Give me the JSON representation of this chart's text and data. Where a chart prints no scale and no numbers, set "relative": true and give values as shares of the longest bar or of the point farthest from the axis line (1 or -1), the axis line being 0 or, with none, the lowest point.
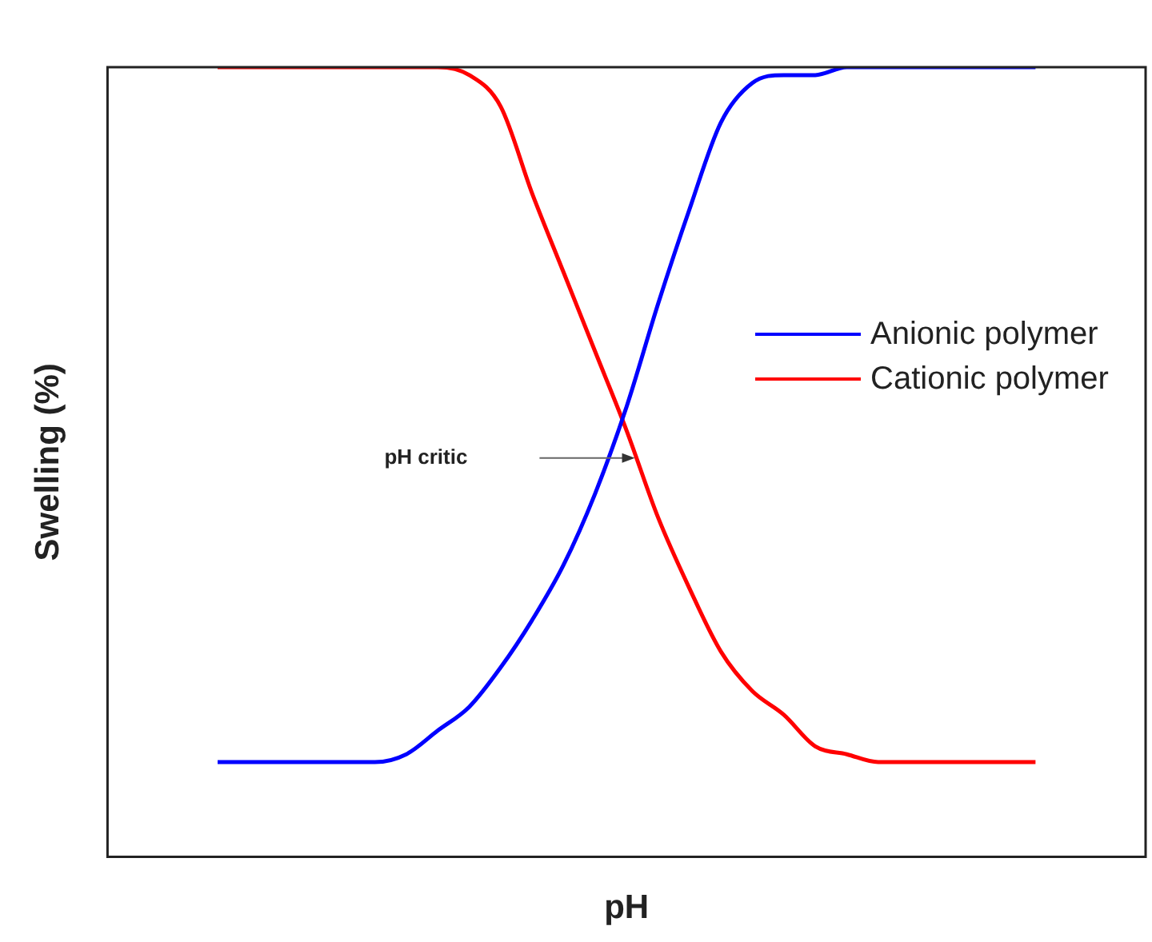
{
  "chart_data": {
    "type": "line",
    "xlabel": "pH",
    "ylabel": "Swelling (%)",
    "relative": true,
    "tick_labels": false,
    "grid": false,
    "legend": "right",
    "marker": "none",
    "line_style": "solid",
    "annotations": [
      "pH critic"
    ],
    "categories": [
      null,
      null,
      null,
      null,
      null,
      null,
      null,
      null,
      null,
      null,
      null,
      null,
      null,
      null,
      null,
      null,
      null,
      null,
      null,
      null,
      null,
      null,
      null,
      null,
      null,
      null,
      null
    ],
    "series": [
      {
        "name": "Anionic polymer",
        "color": "#0000ff",
        "values": [
          0.12,
          0.12,
          0.12,
          0.12,
          0.12,
          0.12,
          0.13,
          0.16,
          0.19,
          0.24,
          0.3,
          0.37,
          0.46,
          0.57,
          0.7,
          0.82,
          0.93,
          0.98,
          0.99,
          0.99,
          1,
          1,
          1,
          1,
          1,
          1,
          1
        ]
      },
      {
        "name": "Cationic polymer",
        "color": "#ff0000",
        "values": [
          1,
          1,
          1,
          1,
          1,
          1,
          1,
          1,
          0.99,
          0.95,
          0.84,
          0.74,
          0.64,
          0.54,
          0.43,
          0.34,
          0.26,
          0.21,
          0.18,
          0.14,
          0.13,
          0.12,
          0.12,
          0.12,
          0.12,
          0.12,
          0.12
        ]
      }
    ]
  }
}
